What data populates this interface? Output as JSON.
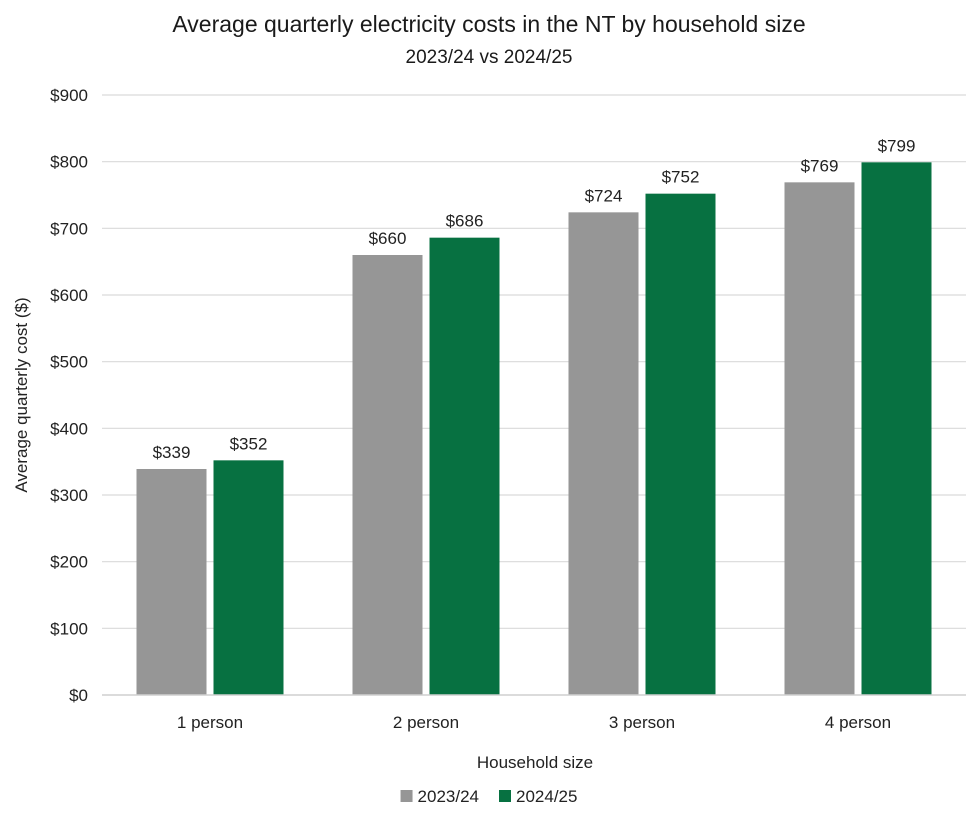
{
  "chart_data": {
    "type": "bar",
    "title": "Average quarterly electricity costs in the NT by household size",
    "subtitle": "2023/24 vs 2024/25",
    "xlabel": "Household size",
    "ylabel": "Average quarterly cost ($)",
    "categories": [
      "1 person",
      "2 person",
      "3 person",
      "4 person"
    ],
    "series": [
      {
        "name": "2023/24",
        "color": "#969696",
        "values": [
          339,
          660,
          724,
          769
        ],
        "labels": [
          "$339",
          "$660",
          "$724",
          "$769"
        ]
      },
      {
        "name": "2024/25",
        "color": "#077141",
        "values": [
          352,
          686,
          752,
          799
        ],
        "labels": [
          "$352",
          "$686",
          "$752",
          "$799"
        ]
      }
    ],
    "ylim": [
      0,
      900
    ],
    "yticks": [
      0,
      100,
      200,
      300,
      400,
      500,
      600,
      700,
      800,
      900
    ],
    "ytick_labels": [
      "$0",
      "$100",
      "$200",
      "$300",
      "$400",
      "$500",
      "$600",
      "$700",
      "$800",
      "$900"
    ],
    "grid": true,
    "legend_position": "bottom"
  }
}
